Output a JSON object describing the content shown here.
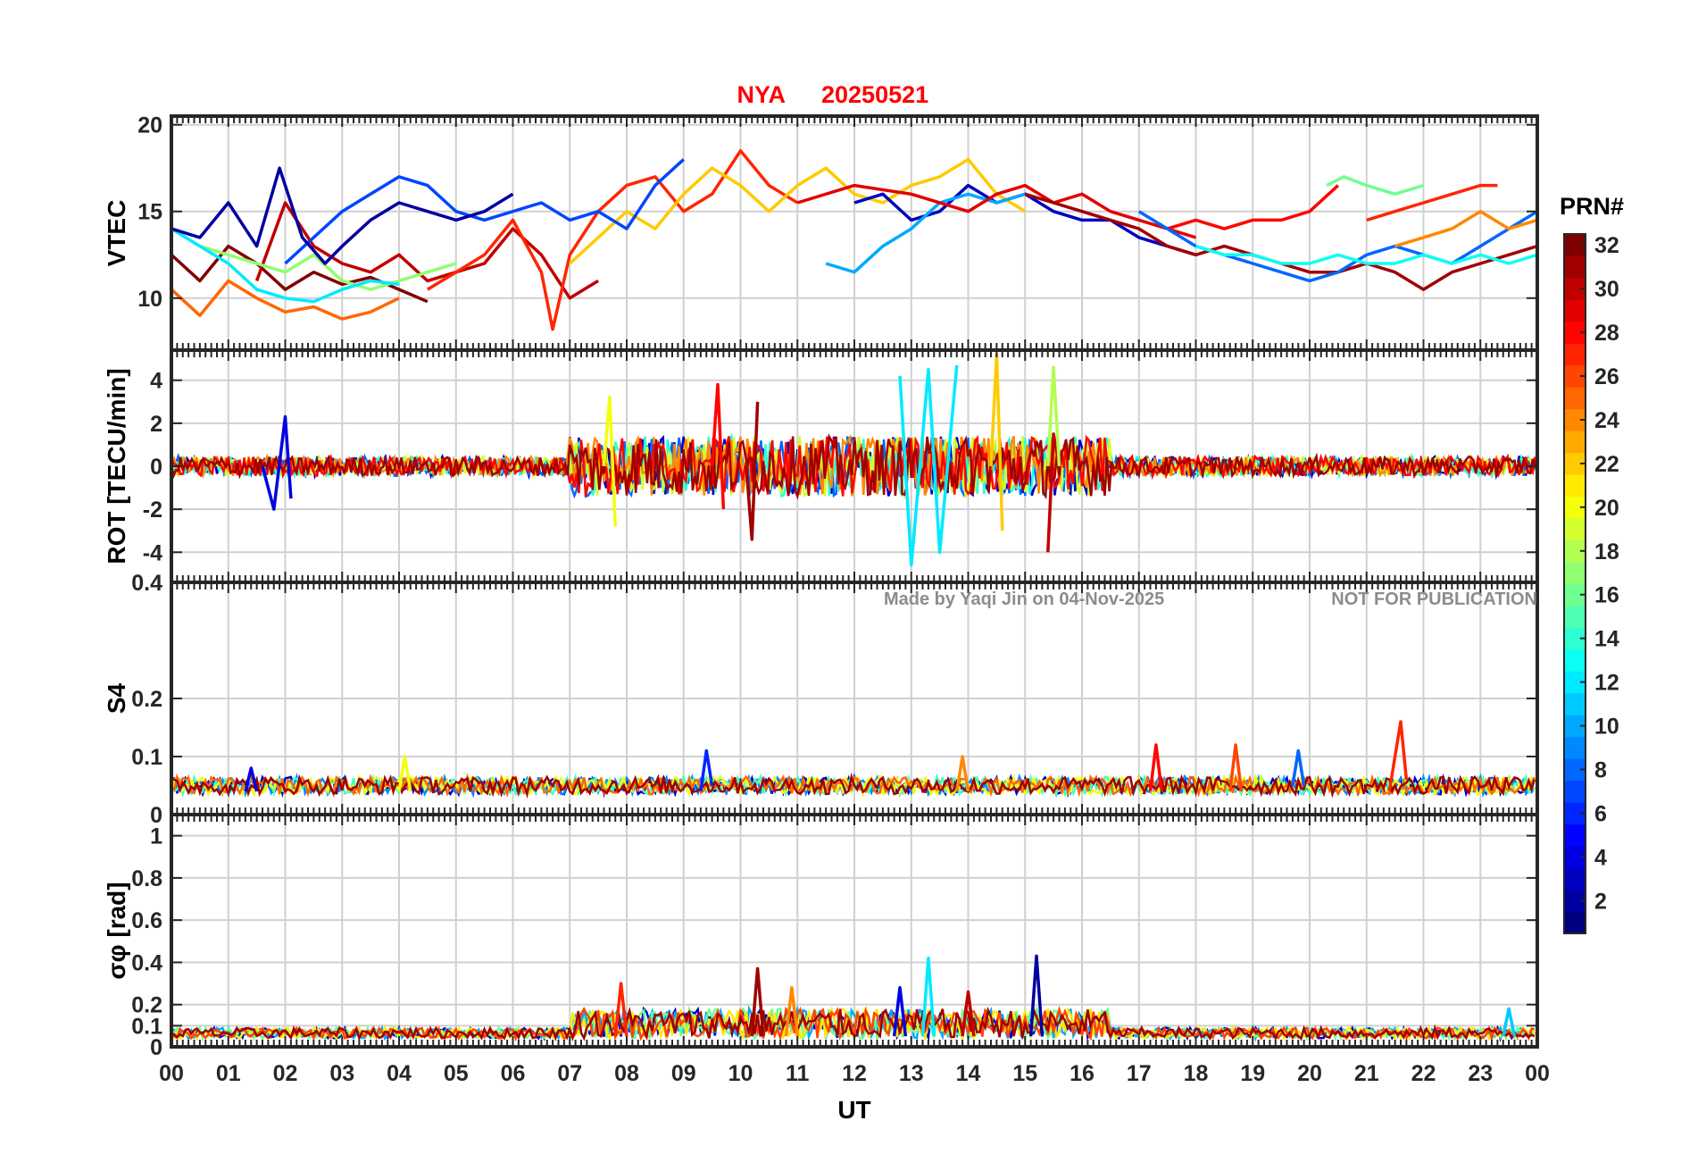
{
  "title": {
    "station": "NYA",
    "date": "20250521",
    "color": "#ff0000"
  },
  "watermark": {
    "author": "Made by Yaqi Jin on 04-Nov-2025",
    "notice": "NOT FOR PUBLICATION",
    "color": "#8c8c8c"
  },
  "xaxis": {
    "label": "UT",
    "ticks": [
      "00",
      "01",
      "02",
      "03",
      "04",
      "05",
      "06",
      "07",
      "08",
      "09",
      "10",
      "11",
      "12",
      "13",
      "14",
      "15",
      "16",
      "17",
      "18",
      "19",
      "20",
      "21",
      "22",
      "23",
      "00"
    ],
    "range_hours": [
      0,
      24
    ]
  },
  "colorbar": {
    "label": "PRN#",
    "range": [
      1,
      32
    ],
    "ticks": [
      "2",
      "4",
      "6",
      "8",
      "10",
      "12",
      "14",
      "16",
      "18",
      "20",
      "22",
      "24",
      "26",
      "28",
      "30",
      "32"
    ],
    "colormap": "jet"
  },
  "chart_data": [
    {
      "type": "line",
      "ylabel": "VTEC",
      "ylim": [
        7,
        20.5
      ],
      "yticks": [
        "10",
        "15",
        "20"
      ],
      "grid": true,
      "series": [
        {
          "prn": 32,
          "x": [
            0.0,
            0.5,
            1.0,
            1.5,
            2.0,
            2.5,
            3.0,
            3.5,
            4.0,
            4.5
          ],
          "values": [
            12.5,
            11.0,
            13.0,
            12.0,
            10.5,
            11.5,
            10.8,
            11.2,
            10.5,
            9.8
          ]
        },
        {
          "prn": 30,
          "x": [
            1.5,
            2.0,
            2.5,
            3.0,
            3.5,
            4.0,
            4.5,
            5.0,
            5.5,
            6.0,
            6.5,
            7.0,
            7.5
          ],
          "values": [
            11.0,
            15.5,
            13.0,
            12.0,
            11.5,
            12.5,
            11.0,
            11.5,
            12.0,
            14.0,
            12.5,
            10.0,
            11.0
          ]
        },
        {
          "prn": 27,
          "x": [
            4.5,
            5.0,
            5.5,
            6.0,
            6.5,
            6.7,
            7.0,
            7.5,
            8.0,
            8.5,
            9.0,
            9.5,
            10.0,
            10.5,
            11.0
          ],
          "values": [
            10.5,
            11.5,
            12.5,
            14.5,
            11.5,
            8.2,
            12.5,
            15.0,
            16.5,
            17.0,
            15.0,
            16.0,
            18.5,
            16.5,
            15.5
          ]
        },
        {
          "prn": 25,
          "x": [
            0.0,
            0.5,
            1.0,
            1.5,
            2.0,
            2.5,
            3.0,
            3.5,
            4.0
          ],
          "values": [
            10.5,
            9.0,
            11.0,
            10.0,
            9.2,
            9.5,
            8.8,
            9.2,
            10.0
          ]
        },
        {
          "prn": 22,
          "x": [
            7.0,
            7.5,
            8.0,
            8.5,
            9.0,
            9.5,
            10.0,
            10.5,
            11.0,
            11.5,
            12.0,
            12.5,
            13.0,
            13.5,
            14.0,
            14.5,
            15.0
          ],
          "values": [
            12.0,
            13.5,
            15.0,
            14.0,
            16.0,
            17.5,
            16.5,
            15.0,
            16.5,
            17.5,
            16.0,
            15.5,
            16.5,
            17.0,
            18.0,
            16.0,
            15.0
          ]
        },
        {
          "prn": 17,
          "x": [
            0.5,
            1.0,
            1.5,
            2.0,
            2.5,
            3.0,
            3.5,
            4.0,
            4.5,
            5.0
          ],
          "values": [
            13.0,
            12.5,
            12.0,
            11.5,
            12.5,
            11.0,
            10.5,
            11.0,
            11.5,
            12.0
          ]
        },
        {
          "prn": 12,
          "x": [
            0.0,
            0.5,
            1.0,
            1.5,
            2.0,
            2.5,
            3.0,
            3.5,
            4.0
          ],
          "values": [
            14.0,
            13.0,
            12.0,
            10.5,
            10.0,
            9.8,
            10.5,
            11.0,
            10.8
          ]
        },
        {
          "prn": 7,
          "x": [
            2.0,
            3.0,
            3.5,
            4.0,
            4.5,
            5.0,
            5.5,
            6.0,
            6.5,
            7.0,
            7.5,
            8.0,
            8.5,
            9.0
          ],
          "values": [
            12.0,
            15.0,
            16.0,
            17.0,
            16.5,
            15.0,
            14.5,
            15.0,
            15.5,
            14.5,
            15.0,
            14.0,
            16.5,
            18.0
          ]
        },
        {
          "prn": 2,
          "x": [
            0.0,
            0.5,
            1.0,
            1.5,
            1.9,
            2.3,
            2.7,
            3.0,
            3.5,
            4.0,
            4.5,
            5.0,
            5.5,
            6.0
          ],
          "values": [
            14.0,
            13.5,
            15.5,
            13.0,
            17.5,
            13.5,
            12.0,
            13.0,
            14.5,
            15.5,
            15.0,
            14.5,
            15.0,
            16.0
          ]
        },
        {
          "prn": 3,
          "x": [
            12.0,
            12.5,
            13.0,
            13.5,
            14.0,
            14.5,
            15.0,
            15.5,
            16.0,
            16.5,
            17.0,
            17.5,
            18.0
          ],
          "values": [
            15.5,
            16.0,
            14.5,
            15.0,
            16.5,
            15.5,
            16.0,
            15.0,
            14.5,
            14.5,
            13.5,
            13.0,
            12.5
          ]
        },
        {
          "prn": 10,
          "x": [
            11.5,
            12.0,
            12.5,
            13.0,
            13.5,
            14.0,
            14.5,
            15.0
          ],
          "values": [
            12.0,
            11.5,
            13.0,
            14.0,
            15.5,
            16.0,
            15.5,
            16.0
          ]
        },
        {
          "prn": 29,
          "x": [
            11.0,
            12.0,
            13.0,
            14.0,
            14.5,
            15.0,
            15.5,
            16.0,
            16.5,
            17.0,
            17.5,
            18.0
          ],
          "values": [
            15.5,
            16.5,
            16.0,
            15.0,
            16.0,
            16.5,
            15.5,
            16.0,
            15.0,
            14.5,
            14.0,
            13.5
          ]
        },
        {
          "prn": 31,
          "x": [
            15.0,
            15.5,
            16.0,
            16.5,
            17.0,
            17.5,
            18.0,
            18.5,
            19.0,
            19.5,
            20.0,
            20.5,
            21.0,
            21.5,
            22.0,
            22.5,
            23.0,
            23.5,
            24.0
          ],
          "values": [
            16.0,
            15.5,
            15.0,
            14.5,
            14.0,
            13.0,
            12.5,
            13.0,
            12.5,
            12.0,
            11.5,
            11.5,
            12.0,
            11.5,
            10.5,
            11.5,
            12.0,
            12.5,
            13.0
          ]
        },
        {
          "prn": 28,
          "x": [
            17.5,
            18.0,
            18.5,
            19.0,
            19.5,
            20.0,
            20.5
          ],
          "values": [
            14.0,
            14.5,
            14.0,
            14.5,
            14.5,
            15.0,
            16.5
          ]
        },
        {
          "prn": 27,
          "x": [
            21.0,
            21.5,
            22.0,
            22.5,
            23.0,
            23.3
          ],
          "values": [
            14.5,
            15.0,
            15.5,
            16.0,
            16.5,
            16.5
          ]
        },
        {
          "prn": 16,
          "x": [
            20.3,
            20.6,
            21.0,
            21.5,
            22.0
          ],
          "values": [
            16.5,
            17.0,
            16.5,
            16.0,
            16.5
          ]
        },
        {
          "prn": 8,
          "x": [
            17.0,
            17.5,
            18.0,
            18.5,
            19.0,
            19.5,
            20.0,
            20.5,
            21.0,
            21.5,
            22.0,
            22.5,
            23.0,
            23.5,
            24.0
          ],
          "values": [
            15.0,
            14.0,
            13.0,
            12.5,
            12.0,
            11.5,
            11.0,
            11.5,
            12.5,
            13.0,
            12.5,
            12.0,
            13.0,
            14.0,
            15.0
          ]
        },
        {
          "prn": 13,
          "x": [
            18.0,
            18.5,
            19.0,
            19.5,
            20.0,
            20.5,
            21.0,
            21.5,
            22.0,
            22.5,
            23.0,
            23.5,
            24.0
          ],
          "values": [
            13.0,
            12.5,
            12.5,
            12.0,
            12.0,
            12.5,
            12.0,
            12.0,
            12.5,
            12.0,
            12.5,
            12.0,
            12.5
          ]
        },
        {
          "prn": 24,
          "x": [
            21.5,
            22.0,
            22.5,
            23.0,
            23.5,
            24.0
          ],
          "values": [
            13.0,
            13.5,
            14.0,
            15.0,
            14.0,
            14.5
          ]
        }
      ]
    },
    {
      "type": "line",
      "ylabel": "ROT [TECU/min]",
      "ylim": [
        -5.4,
        5.4
      ],
      "yticks": [
        "4",
        "2",
        "0",
        "-2",
        "-4"
      ],
      "grid": true,
      "series": [
        {
          "prn": 4,
          "x": [
            1.6,
            1.8,
            2.0,
            2.1
          ],
          "values": [
            0.0,
            -2.0,
            2.3,
            -1.5
          ]
        },
        {
          "prn": 12,
          "x": [
            12.8,
            13.0,
            13.3,
            13.5,
            13.8
          ],
          "values": [
            4.2,
            -4.6,
            4.5,
            -4.0,
            4.7
          ]
        },
        {
          "prn": 22,
          "x": [
            14.4,
            14.5,
            14.6
          ],
          "values": [
            0.0,
            5.2,
            -3.0
          ]
        },
        {
          "prn": 30,
          "x": [
            15.4,
            15.5,
            15.6
          ],
          "values": [
            -4.0,
            1.5,
            0.0
          ]
        },
        {
          "prn": 18,
          "x": [
            15.4,
            15.5,
            15.6
          ],
          "values": [
            0.0,
            4.6,
            0.0
          ]
        },
        {
          "prn": 28,
          "x": [
            9.5,
            9.6,
            9.7
          ],
          "values": [
            0.0,
            3.8,
            -2.0
          ]
        },
        {
          "prn": 20,
          "x": [
            7.6,
            7.7,
            7.8
          ],
          "values": [
            0.0,
            3.2,
            -2.8
          ]
        },
        {
          "prn": 31,
          "x": [
            10.1,
            10.2,
            10.3
          ],
          "values": [
            0.0,
            -3.4,
            3.0
          ]
        }
      ]
    },
    {
      "type": "line",
      "ylabel": "S4",
      "ylim": [
        0,
        0.4
      ],
      "yticks": [
        "0.4",
        "0.2",
        "0.1",
        "0"
      ],
      "grid": true,
      "series": [
        {
          "prn": 27,
          "x": [
            21.4,
            21.5,
            21.6,
            21.7
          ],
          "values": [
            0.04,
            0.1,
            0.16,
            0.06
          ]
        },
        {
          "prn": 28,
          "x": [
            17.2,
            17.3,
            17.4
          ],
          "values": [
            0.04,
            0.12,
            0.04
          ]
        },
        {
          "prn": 26,
          "x": [
            18.6,
            18.7,
            18.8
          ],
          "values": [
            0.04,
            0.12,
            0.04
          ]
        },
        {
          "prn": 6,
          "x": [
            9.3,
            9.4,
            9.5
          ],
          "values": [
            0.04,
            0.11,
            0.05
          ]
        },
        {
          "prn": 8,
          "x": [
            19.7,
            19.8,
            19.9
          ],
          "values": [
            0.05,
            0.11,
            0.05
          ]
        },
        {
          "prn": 4,
          "x": [
            1.3,
            1.4,
            1.5
          ],
          "values": [
            0.04,
            0.08,
            0.04
          ]
        },
        {
          "prn": 20,
          "x": [
            4.0,
            4.1,
            4.2
          ],
          "values": [
            0.04,
            0.1,
            0.04
          ]
        },
        {
          "prn": 24,
          "x": [
            13.8,
            13.9,
            14.0
          ],
          "values": [
            0.04,
            0.1,
            0.04
          ]
        }
      ]
    },
    {
      "type": "line",
      "ylabel": "σφ [rad]",
      "ylim": [
        0,
        1.1
      ],
      "yticks": [
        "1",
        "0.8",
        "0.6",
        "0.4",
        "0.2",
        "0.1",
        "0"
      ],
      "grid": true,
      "series": [
        {
          "prn": 2,
          "x": [
            15.1,
            15.2,
            15.3
          ],
          "values": [
            0.05,
            0.43,
            0.05
          ]
        },
        {
          "prn": 12,
          "x": [
            13.2,
            13.3,
            13.4
          ],
          "values": [
            0.05,
            0.42,
            0.05
          ]
        },
        {
          "prn": 31,
          "x": [
            10.2,
            10.3,
            10.4
          ],
          "values": [
            0.05,
            0.37,
            0.05
          ]
        },
        {
          "prn": 27,
          "x": [
            7.8,
            7.9,
            8.0
          ],
          "values": [
            0.05,
            0.3,
            0.05
          ]
        },
        {
          "prn": 4,
          "x": [
            12.7,
            12.8,
            12.9
          ],
          "values": [
            0.05,
            0.28,
            0.05
          ]
        },
        {
          "prn": 24,
          "x": [
            10.8,
            10.9,
            11.0
          ],
          "values": [
            0.05,
            0.28,
            0.05
          ]
        },
        {
          "prn": 30,
          "x": [
            13.9,
            14.0,
            14.1
          ],
          "values": [
            0.05,
            0.26,
            0.05
          ]
        },
        {
          "prn": 11,
          "x": [
            23.4,
            23.5,
            23.6
          ],
          "values": [
            0.05,
            0.18,
            0.05
          ]
        }
      ]
    }
  ]
}
